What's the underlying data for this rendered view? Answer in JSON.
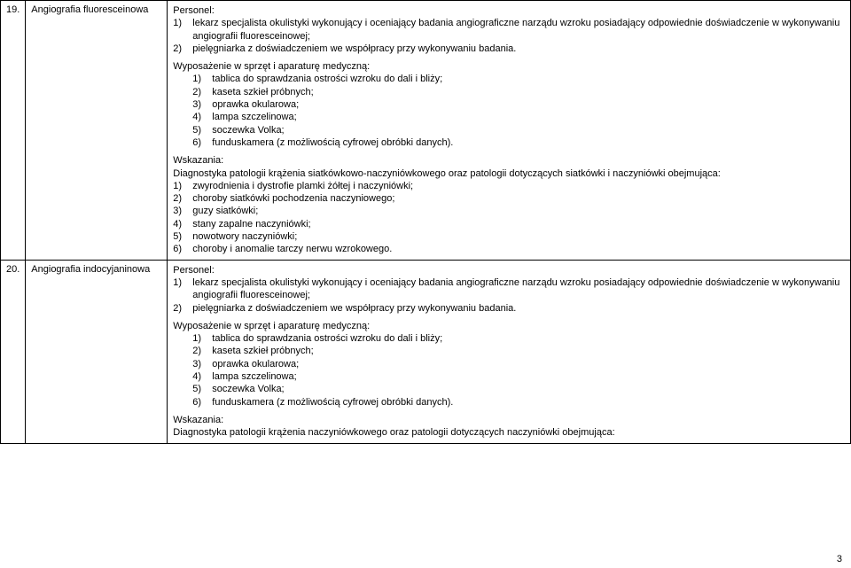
{
  "rows": [
    {
      "num": "19.",
      "name": "Angiografia fluoresceinowa",
      "personnel_title": "Personel:",
      "personnel_items": [
        {
          "n": "1)",
          "t": "lekarz specjalista okulistyki wykonujący i oceniający badania angiograficzne narządu wzroku posiadający odpowiednie doświadczenie w wykonywaniu angiografii fluoresceinowej;"
        },
        {
          "n": "2)",
          "t": "pielęgniarka z doświadczeniem we współpracy przy wykonywaniu badania."
        }
      ],
      "equip_title": "Wyposażenie w sprzęt i aparaturę medyczną:",
      "equip_items": [
        {
          "n": "1)",
          "t": "tablica do sprawdzania ostrości wzroku do dali i bliży;"
        },
        {
          "n": "2)",
          "t": "kaseta szkieł próbnych;"
        },
        {
          "n": "3)",
          "t": "oprawka okularowa;"
        },
        {
          "n": "4)",
          "t": "lampa szczelinowa;"
        },
        {
          "n": "5)",
          "t": "soczewka Volka;"
        },
        {
          "n": "6)",
          "t": "funduskamera (z możliwością cyfrowej obróbki danych)."
        }
      ],
      "ind_title": "Wskazania:",
      "ind_lead": "Diagnostyka patologii krążenia siatkówkowo-naczyniówkowego oraz patologii dotyczących siatkówki i naczyniówki obejmująca:",
      "ind_items": [
        {
          "n": "1)",
          "t": "zwyrodnienia i dystrofie plamki żółtej i naczyniówki;"
        },
        {
          "n": "2)",
          "t": "choroby siatkówki pochodzenia naczyniowego;"
        },
        {
          "n": "3)",
          "t": "guzy siatkówki;"
        },
        {
          "n": "4)",
          "t": "stany zapalne naczyniówki;"
        },
        {
          "n": "5)",
          "t": "nowotwory naczyniówki;"
        },
        {
          "n": "6)",
          "t": "choroby i anomalie tarczy nerwu wzrokowego."
        }
      ]
    },
    {
      "num": "20.",
      "name": "Angiografia indocyjaninowa",
      "personnel_title": "Personel:",
      "personnel_items": [
        {
          "n": "1)",
          "t": "lekarz specjalista okulistyki wykonujący i oceniający badania angiograficzne narządu wzroku posiadający odpowiednie doświadczenie w wykonywaniu angiografii fluoresceinowej;"
        },
        {
          "n": "2)",
          "t": "pielęgniarka z doświadczeniem we współpracy przy wykonywaniu badania."
        }
      ],
      "equip_title": "Wyposażenie w sprzęt i aparaturę medyczną:",
      "equip_items": [
        {
          "n": "1)",
          "t": "tablica do sprawdzania ostrości wzroku do dali i bliży;"
        },
        {
          "n": "2)",
          "t": "kaseta szkieł próbnych;"
        },
        {
          "n": "3)",
          "t": "oprawka okularowa;"
        },
        {
          "n": "4)",
          "t": "lampa szczelinowa;"
        },
        {
          "n": "5)",
          "t": "soczewka Volka;"
        },
        {
          "n": "6)",
          "t": "funduskamera (z możliwością cyfrowej obróbki danych)."
        }
      ],
      "ind_title": "Wskazania:",
      "ind_lead": "Diagnostyka patologii krążenia naczyniówkowego oraz patologii dotyczących naczyniówki obejmująca:",
      "ind_lead_justify": true,
      "ind_items": []
    }
  ],
  "page_number": "3"
}
